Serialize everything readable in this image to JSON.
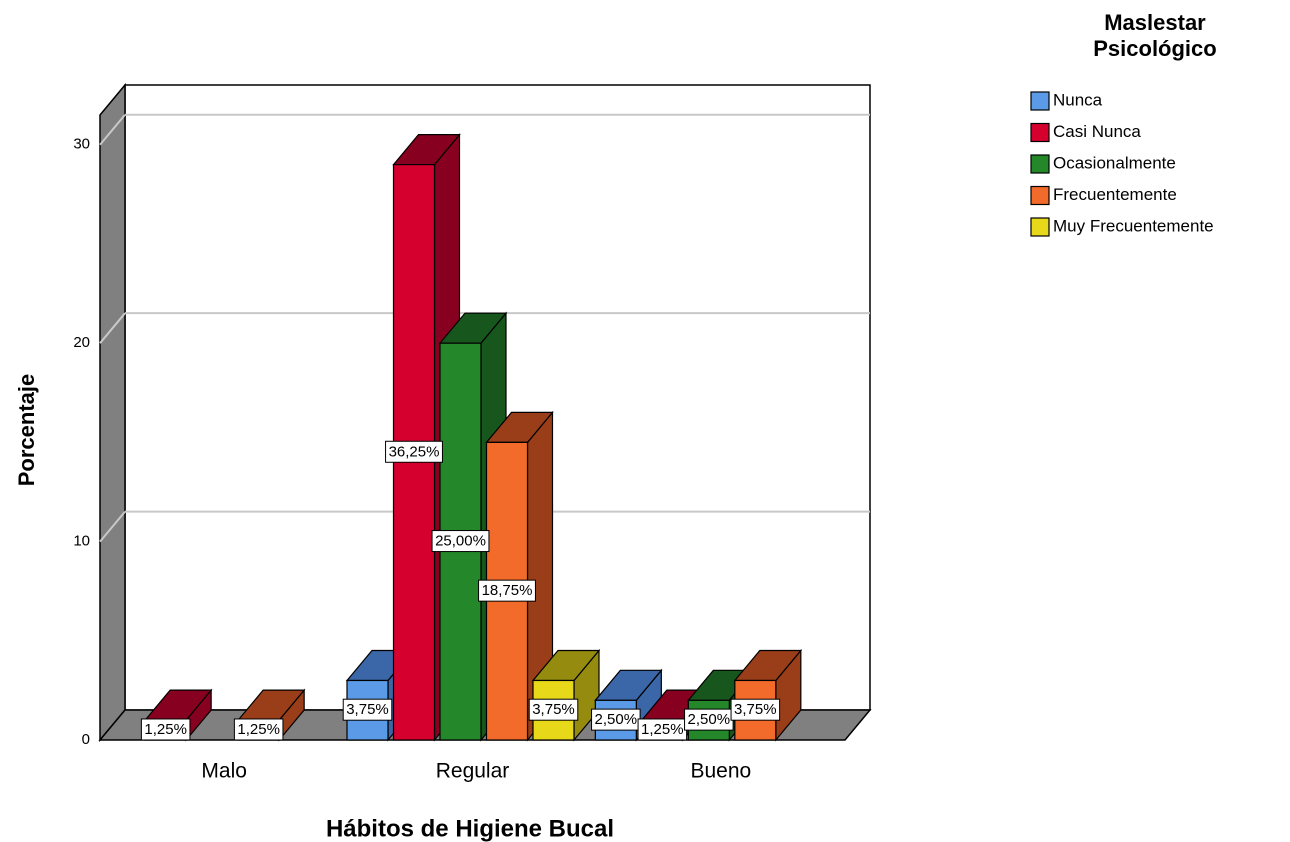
{
  "chart_data": {
    "type": "bar3d",
    "x_label": "Hábitos de Higiene Bucal",
    "y_label": "Porcentaje",
    "legend_title": "Maslestar Psicológico",
    "legend_position": "right",
    "categories": [
      "Malo",
      "Regular",
      "Bueno"
    ],
    "series": [
      {
        "name": "Nunca",
        "color": "#5b9ae6",
        "side": "#3b67a8",
        "values": [
          null,
          3,
          2
        ],
        "value_labels": [
          null,
          "3,75%",
          "2,50%"
        ]
      },
      {
        "name": "Casi Nunca",
        "color": "#d6002e",
        "side": "#88001f",
        "values": [
          1,
          29,
          1
        ],
        "value_labels": [
          "1,25%",
          "36,25%",
          "1,25%"
        ]
      },
      {
        "name": "Ocasionalmente",
        "color": "#24882b",
        "side": "#17561c",
        "values": [
          null,
          20,
          2
        ],
        "value_labels": [
          null,
          "25,00%",
          "2,50%"
        ]
      },
      {
        "name": "Frecuentemente",
        "color": "#f36b2b",
        "side": "#9a3d19",
        "values": [
          1,
          15,
          3
        ],
        "value_labels": [
          "1,25%",
          "18,75%",
          "3,75%"
        ]
      },
      {
        "name": "Muy Frecuentemente",
        "color": "#e7d81a",
        "side": "#958c0f",
        "values": [
          null,
          3,
          null
        ],
        "value_labels": [
          null,
          "3,75%",
          null
        ]
      }
    ],
    "ylim": [
      0,
      31.5
    ],
    "yticks": [
      0,
      10,
      20,
      30
    ],
    "grid": true
  }
}
